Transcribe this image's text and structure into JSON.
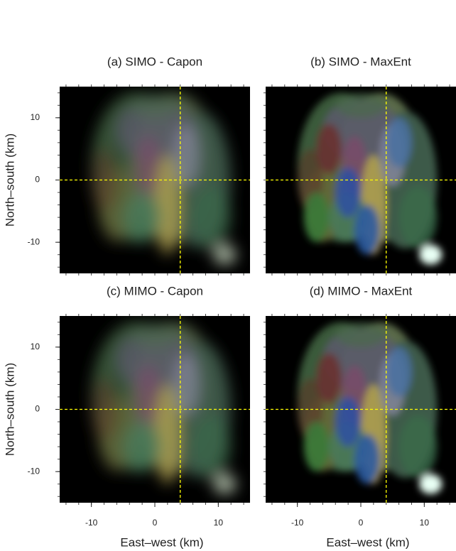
{
  "chart_data": [
    {
      "type": "image",
      "title": "(a) SIMO - Capon",
      "ylabel": "North–south (km)",
      "xlim": [
        -15,
        15
      ],
      "ylim": [
        -15,
        15
      ],
      "yticks": [
        10,
        0,
        -10
      ],
      "crosshair_x": 4,
      "crosshair_y": 0,
      "crosshair_color": "#ffff00"
    },
    {
      "type": "image",
      "title": "(b) SIMO - MaxEnt",
      "xlim": [
        -15,
        15
      ],
      "ylim": [
        -15,
        15
      ],
      "crosshair_x": 4,
      "crosshair_y": 0,
      "crosshair_color": "#ffff00"
    },
    {
      "type": "image",
      "title": "(c) MIMO - Capon",
      "xlabel": "East–west (km)",
      "ylabel": "North–south (km)",
      "xlim": [
        -15,
        15
      ],
      "ylim": [
        -15,
        15
      ],
      "xticks": [
        -10,
        0,
        10
      ],
      "yticks": [
        10,
        0,
        -10
      ],
      "crosshair_x": 4,
      "crosshair_y": 0,
      "crosshair_color": "#ffff00"
    },
    {
      "type": "image",
      "title": "(d) MIMO - MaxEnt",
      "xlabel": "East–west (km)",
      "xlim": [
        -15,
        15
      ],
      "ylim": [
        -15,
        15
      ],
      "xticks": [
        -10,
        0,
        10
      ],
      "crosshair_x": 4,
      "crosshair_y": 0,
      "crosshair_color": "#ffff00"
    }
  ]
}
